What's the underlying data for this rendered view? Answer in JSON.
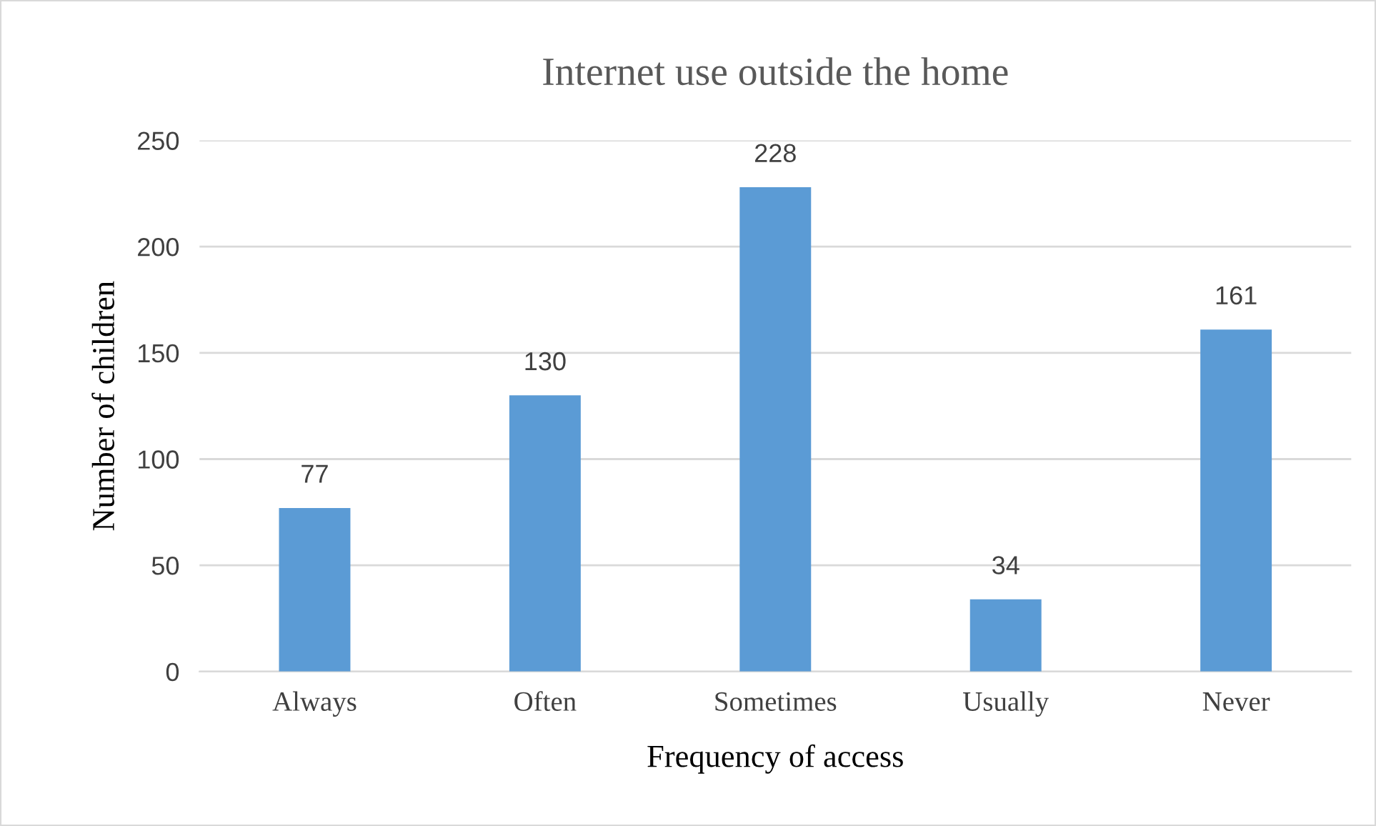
{
  "chart_data": {
    "type": "bar",
    "title": "Internet use outside the home",
    "xlabel": "Frequency of access",
    "ylabel": "Number of children",
    "categories": [
      "Always",
      "Often",
      "Sometimes",
      "Usually",
      "Never"
    ],
    "values": [
      77,
      130,
      228,
      34,
      161
    ],
    "color": "#5b9bd5",
    "ylim": [
      0,
      250
    ],
    "yticks": [
      0,
      50,
      100,
      150,
      200,
      250
    ],
    "grid": "y",
    "data_labels": true,
    "legend": false
  }
}
